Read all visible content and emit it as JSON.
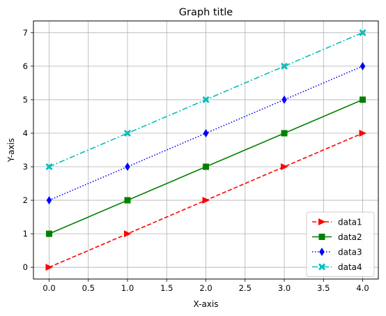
{
  "chart_data": {
    "type": "line",
    "title": "Graph title",
    "xlabel": "X-axis",
    "ylabel": "Y-axis",
    "xlim": [
      -0.2,
      4.2
    ],
    "ylim": [
      -0.35,
      7.35
    ],
    "xticks": [
      0,
      0.5,
      1,
      1.5,
      2,
      2.5,
      3,
      3.5,
      4
    ],
    "xtick_labels": [
      "0.0",
      "0.5",
      "1.0",
      "1.5",
      "2.0",
      "2.5",
      "3.0",
      "3.5",
      "4.0"
    ],
    "yticks": [
      0,
      1,
      2,
      3,
      4,
      5,
      6,
      7
    ],
    "ytick_labels": [
      "0",
      "1",
      "2",
      "3",
      "4",
      "5",
      "6",
      "7"
    ],
    "grid": true,
    "legend_position": "bottom-right",
    "x": [
      0,
      1,
      2,
      3,
      4
    ],
    "series": [
      {
        "name": "data1",
        "values": [
          0,
          1,
          2,
          3,
          4
        ],
        "color": "#ff0000",
        "linestyle": "dashed",
        "marker": "triangle-right"
      },
      {
        "name": "data2",
        "values": [
          1,
          2,
          3,
          4,
          5
        ],
        "color": "#008000",
        "linestyle": "solid",
        "marker": "square"
      },
      {
        "name": "data3",
        "values": [
          2,
          3,
          4,
          5,
          6
        ],
        "color": "#0000ff",
        "linestyle": "dotted",
        "marker": "thin-diamond"
      },
      {
        "name": "data4",
        "values": [
          3,
          4,
          5,
          6,
          7
        ],
        "color": "#00bfbf",
        "linestyle": "dashdot",
        "marker": "x-filled"
      }
    ]
  }
}
